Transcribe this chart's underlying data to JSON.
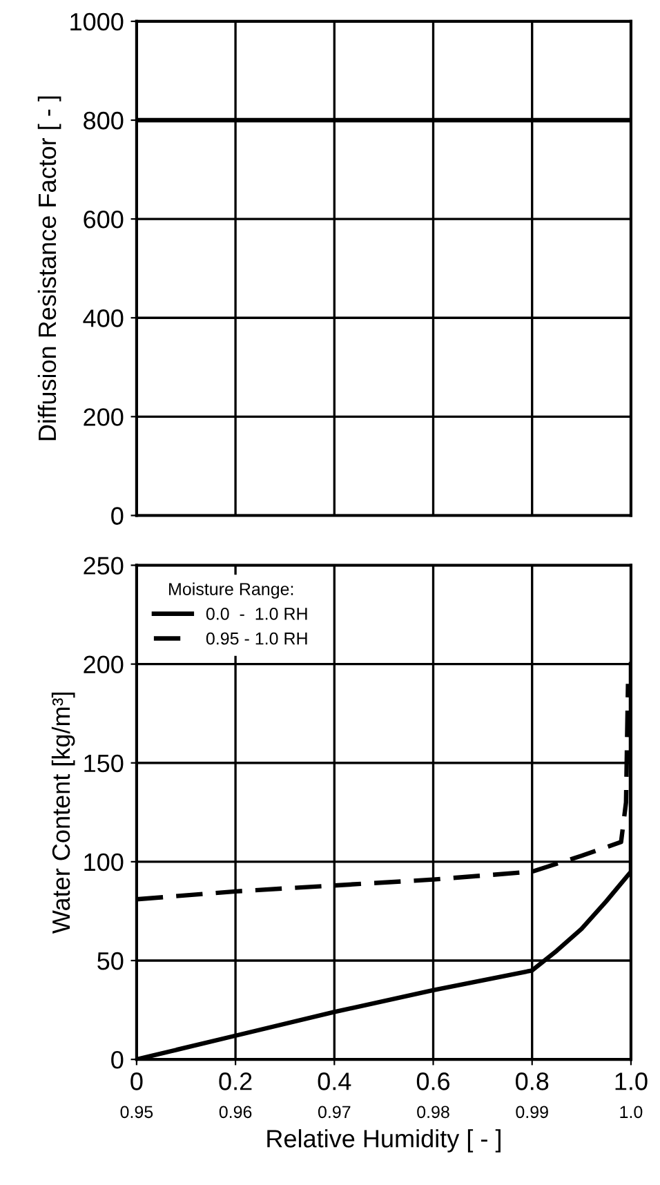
{
  "chart_data": [
    {
      "type": "line",
      "ylabel": "Diffusion Resistance Factor [ - ]",
      "xlim": [
        0,
        1
      ],
      "ylim": [
        0,
        1000
      ],
      "xticks": [
        0,
        0.2,
        0.4,
        0.6,
        0.8,
        1.0
      ],
      "yticks": [
        0,
        200,
        400,
        600,
        800,
        1000
      ],
      "tick_labels": "y",
      "grid": true,
      "legend": false,
      "series": [
        {
          "color": "#000000",
          "line_style": "solid",
          "x": [
            0,
            1
          ],
          "values": [
            800,
            800
          ]
        }
      ]
    },
    {
      "type": "line",
      "xlabel": "Relative Humidity [ - ]",
      "ylabel": "Water Content [kg/m³]",
      "legend_title": "Moisture Range:",
      "legend": "top left",
      "grid": true,
      "xlim": [
        0,
        1
      ],
      "xticks": [
        0,
        {
          "value": 0.2,
          "label": "0.2"
        },
        {
          "value": 0.4,
          "label": "0.4"
        },
        {
          "value": 0.6,
          "label": "0.6"
        },
        {
          "value": 0.8,
          "label": "0.8"
        },
        {
          "value": 1.0,
          "label": "1.0"
        }
      ],
      "x2lim": [
        0.95,
        1.0
      ],
      "x2ticks": [
        0.95,
        0.96,
        0.97,
        0.98,
        0.99,
        {
          "value": 1.0,
          "label": "1.0"
        }
      ],
      "ylim": [
        0,
        250
      ],
      "yticks": [
        0,
        50,
        100,
        150,
        200,
        250
      ],
      "series": [
        {
          "name": "0.0  -  1.0 RH",
          "color": "#000000",
          "line_style": "solid",
          "x": [
            0,
            0.2,
            0.4,
            0.6,
            0.8,
            0.85,
            0.9,
            0.95,
            1.0,
            1.0
          ],
          "values": [
            0,
            12,
            24,
            35,
            45,
            55,
            66,
            80,
            95,
            200
          ]
        },
        {
          "name": "0.95 - 1.0 RH",
          "color": "#000000",
          "line_style": "dashed",
          "axis": "x2",
          "x": [
            0.95,
            0.96,
            0.97,
            0.98,
            0.99,
            0.995,
            0.999,
            0.9995,
            0.9997
          ],
          "values": [
            81,
            85,
            88,
            91,
            95,
            103,
            110,
            130,
            190
          ]
        }
      ]
    }
  ]
}
